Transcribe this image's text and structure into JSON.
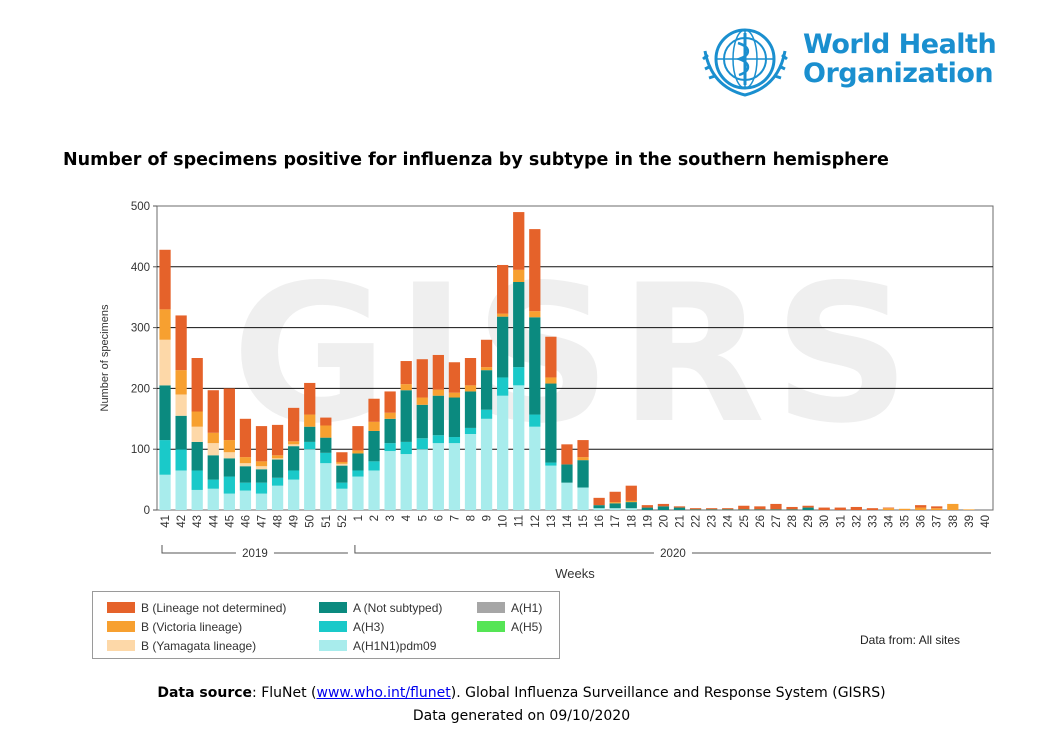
{
  "header": {
    "org_name_line1": "World Health",
    "org_name_line2": "Organization",
    "watermark": "GISRS"
  },
  "colors": {
    "b_lineage_not_determined": "#e5622a",
    "b_victoria": "#f7a030",
    "b_yamagata": "#fdd8a8",
    "a_not_subtyped": "#0b8a7f",
    "a_h3": "#1ac9c9",
    "a_h1n1pdm09": "#a8ecec",
    "a_h1": "#a6a6a6",
    "a_h5": "#55e555"
  },
  "chart_data": {
    "type": "bar",
    "stacked": true,
    "title": "Number of specimens positive for influenza by subtype in the southern hemisphere",
    "xlabel": "Weeks",
    "ylabel": "Number of specimens",
    "ylim": [
      0,
      500
    ],
    "yticks": [
      0,
      100,
      200,
      300,
      400,
      500
    ],
    "grid": true,
    "categories": [
      "41",
      "42",
      "43",
      "44",
      "45",
      "46",
      "47",
      "48",
      "49",
      "50",
      "51",
      "52",
      "1",
      "2",
      "3",
      "4",
      "5",
      "6",
      "7",
      "8",
      "9",
      "10",
      "11",
      "12",
      "13",
      "14",
      "15",
      "16",
      "17",
      "18",
      "19",
      "20",
      "21",
      "22",
      "23",
      "24",
      "25",
      "26",
      "27",
      "28",
      "29",
      "30",
      "31",
      "32",
      "33",
      "34",
      "35",
      "36",
      "37",
      "38",
      "39",
      "40"
    ],
    "year_groups": [
      {
        "label": "2019",
        "from": "41",
        "to": "52"
      },
      {
        "label": "2020",
        "from": "1",
        "to": "40"
      }
    ],
    "series": [
      {
        "key": "a_h1n1pdm09",
        "name": "A(H1N1)pdm09",
        "values": [
          58,
          65,
          33,
          35,
          27,
          32,
          27,
          40,
          50,
          100,
          77,
          35,
          55,
          65,
          97,
          92,
          100,
          110,
          110,
          125,
          150,
          188,
          205,
          137,
          73,
          45,
          37,
          3,
          3,
          3,
          0,
          0,
          0,
          0,
          0,
          0,
          0,
          0,
          0,
          0,
          0,
          0,
          0,
          0,
          0,
          0,
          0,
          0,
          0,
          0,
          0,
          0
        ]
      },
      {
        "key": "a_h3",
        "name": "A(H3)",
        "values": [
          57,
          35,
          32,
          15,
          28,
          13,
          18,
          13,
          15,
          12,
          17,
          10,
          10,
          15,
          13,
          20,
          18,
          13,
          10,
          10,
          15,
          30,
          30,
          20,
          5,
          0,
          0,
          0,
          0,
          0,
          0,
          0,
          0,
          0,
          0,
          0,
          0,
          0,
          0,
          0,
          0,
          0,
          0,
          0,
          0,
          0,
          0,
          0,
          0,
          0,
          0,
          0
        ]
      },
      {
        "key": "a_not_subtyped",
        "name": "A (Not subtyped)",
        "values": [
          90,
          55,
          47,
          40,
          30,
          27,
          22,
          30,
          40,
          25,
          25,
          28,
          28,
          50,
          40,
          85,
          55,
          65,
          65,
          60,
          65,
          100,
          140,
          160,
          130,
          30,
          45,
          5,
          8,
          10,
          4,
          6,
          4,
          1,
          1,
          1,
          1,
          1,
          1,
          1,
          4,
          0,
          0,
          0,
          0,
          0,
          0,
          0,
          0,
          0,
          0,
          0
        ]
      },
      {
        "key": "a_h1",
        "name": "A(H1)",
        "values": [
          0,
          0,
          0,
          0,
          0,
          0,
          0,
          0,
          0,
          0,
          0,
          0,
          0,
          0,
          0,
          0,
          0,
          0,
          0,
          0,
          0,
          0,
          0,
          0,
          0,
          0,
          0,
          0,
          0,
          0,
          0,
          0,
          0,
          0,
          0,
          0,
          0,
          0,
          0,
          0,
          0,
          0,
          0,
          0,
          0,
          0,
          0,
          0,
          0,
          0,
          0,
          0
        ]
      },
      {
        "key": "a_h5",
        "name": "A(H5)",
        "values": [
          0,
          0,
          0,
          0,
          0,
          0,
          0,
          0,
          0,
          0,
          0,
          0,
          0,
          0,
          0,
          0,
          0,
          0,
          0,
          0,
          0,
          0,
          0,
          0,
          0,
          0,
          0,
          0,
          0,
          0,
          0,
          0,
          0,
          0,
          0,
          0,
          0,
          0,
          0,
          0,
          0,
          0,
          0,
          0,
          0,
          0,
          0,
          0,
          0,
          0,
          0,
          0
        ]
      },
      {
        "key": "b_yamagata",
        "name": "B (Yamagata lineage)",
        "values": [
          75,
          35,
          25,
          20,
          10,
          5,
          5,
          2,
          3,
          0,
          0,
          3,
          0,
          0,
          0,
          0,
          0,
          0,
          0,
          0,
          0,
          0,
          0,
          0,
          0,
          0,
          0,
          0,
          0,
          0,
          0,
          0,
          0,
          0,
          0,
          0,
          0,
          0,
          0,
          0,
          0,
          0,
          0,
          0,
          0,
          0,
          0,
          0,
          0,
          0,
          0,
          0
        ]
      },
      {
        "key": "b_victoria",
        "name": "B (Victoria lineage)",
        "values": [
          50,
          40,
          25,
          17,
          20,
          10,
          8,
          5,
          5,
          20,
          20,
          3,
          5,
          15,
          10,
          10,
          12,
          10,
          8,
          10,
          5,
          5,
          20,
          10,
          10,
          0,
          5,
          0,
          2,
          2,
          0,
          0,
          0,
          0,
          0,
          0,
          0,
          0,
          0,
          0,
          0,
          0,
          0,
          0,
          0,
          3,
          2,
          4,
          3,
          10,
          1,
          0
        ]
      },
      {
        "key": "b_lineage_not_determined",
        "name": "B (Lineage not determined)",
        "values": [
          98,
          90,
          88,
          70,
          85,
          63,
          58,
          50,
          55,
          52,
          13,
          16,
          40,
          38,
          35,
          38,
          63,
          57,
          50,
          45,
          45,
          80,
          95,
          135,
          67,
          33,
          28,
          12,
          17,
          25,
          4,
          4,
          2,
          2,
          2,
          2,
          6,
          5,
          9,
          4,
          3,
          4,
          4,
          5,
          3,
          1,
          0,
          4,
          3,
          0,
          0,
          0
        ]
      }
    ]
  },
  "legend": {
    "items": [
      {
        "key": "b_lineage_not_determined",
        "label": "B (Lineage not determined)"
      },
      {
        "key": "b_victoria",
        "label": "B (Victoria lineage)"
      },
      {
        "key": "b_yamagata",
        "label": "B (Yamagata lineage)"
      },
      {
        "key": "a_not_subtyped",
        "label": "A (Not subtyped)"
      },
      {
        "key": "a_h3",
        "label": "A(H3)"
      },
      {
        "key": "a_h1n1pdm09",
        "label": "A(H1N1)pdm09"
      },
      {
        "key": "a_h1",
        "label": "A(H1)"
      },
      {
        "key": "a_h5",
        "label": "A(H5)"
      }
    ]
  },
  "footer": {
    "data_from": "Data from: All sites",
    "source_label": "Data source",
    "source_sep": ": FluNet (",
    "source_link": "www.who.int/flunet",
    "source_rest": "). Global Influenza Surveillance and Response System (GISRS)",
    "generated": "Data generated on 09/10/2020"
  }
}
